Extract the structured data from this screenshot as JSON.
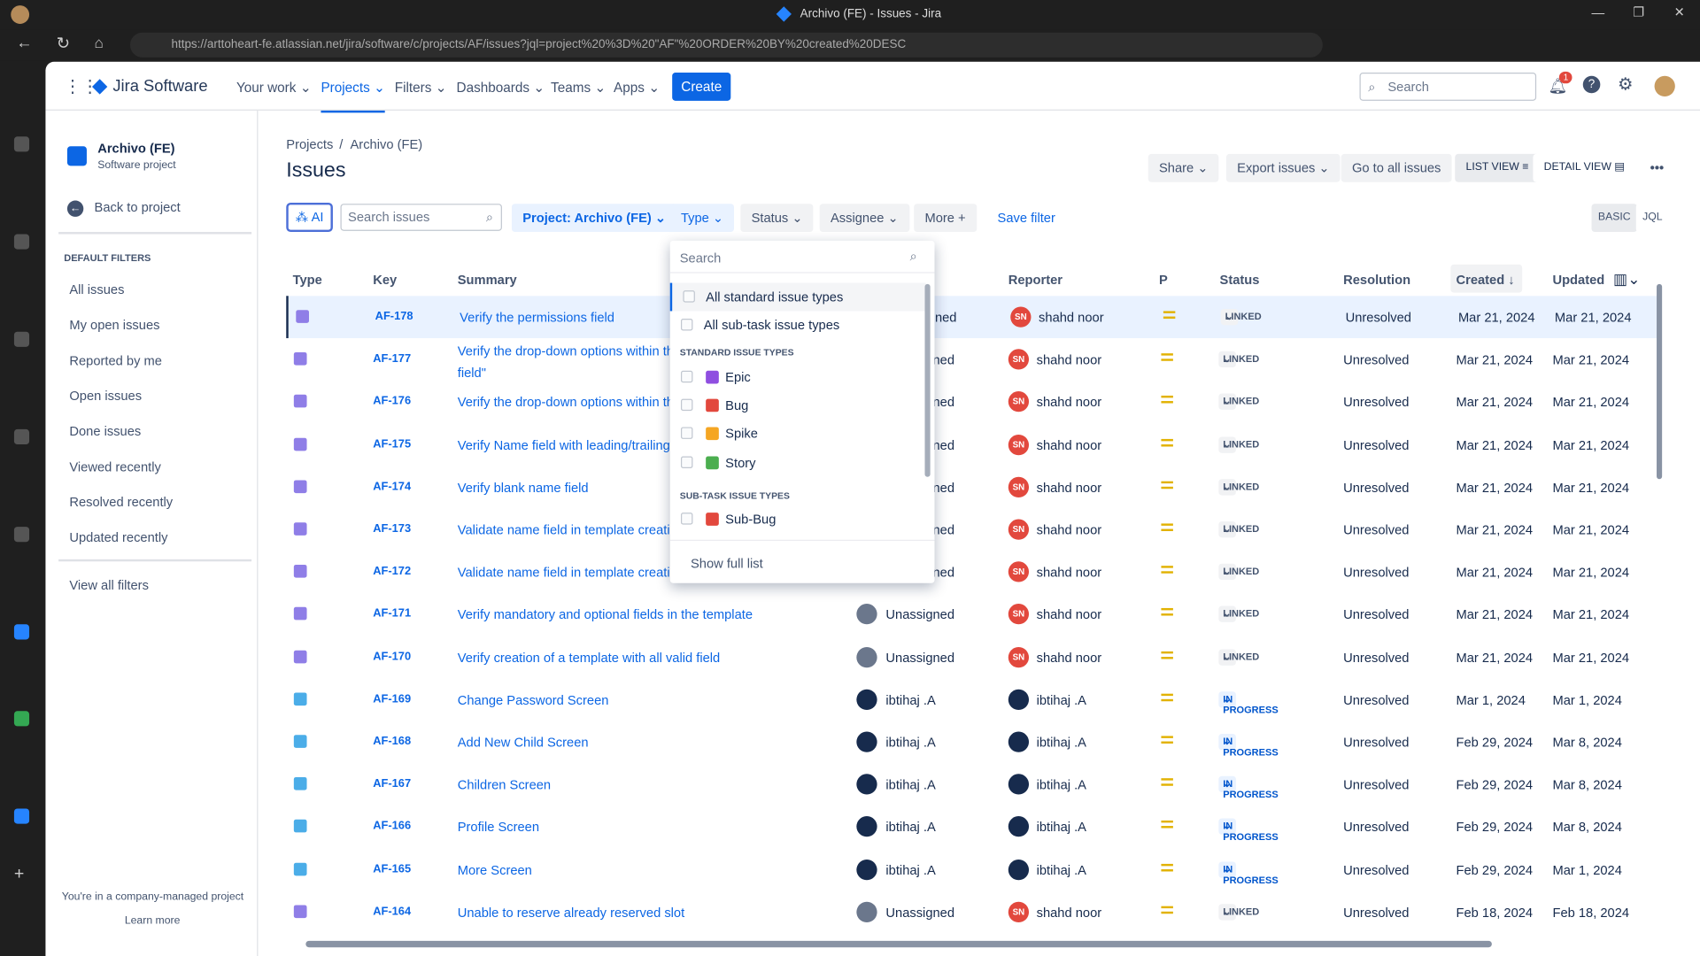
{
  "browser": {
    "title": "Archivo (FE) - Issues - Jira",
    "url": "https://arttoheart-fe.atlassian.net/jira/software/c/projects/AF/issues?jql=project%20%3D%20\"AF\"%20ORDER%20BY%20created%20DESC"
  },
  "nav": {
    "product": "Jira Software",
    "items": [
      "Your work",
      "Projects",
      "Filters",
      "Dashboards",
      "Teams",
      "Apps"
    ],
    "create": "Create",
    "search_placeholder": "Search",
    "notif_count": "1"
  },
  "sidebar": {
    "project_name": "Archivo (FE)",
    "project_type": "Software project",
    "back": "Back to project",
    "section": "DEFAULT FILTERS",
    "items": [
      "All issues",
      "My open issues",
      "Reported by me",
      "Open issues",
      "Done issues",
      "Viewed recently",
      "Resolved recently",
      "Updated recently"
    ],
    "view_all": "View all filters",
    "footer": "You're in a company-managed project",
    "learn_more": "Learn more"
  },
  "main": {
    "breadcrumb": [
      "Projects",
      "Archivo (FE)"
    ],
    "title": "Issues",
    "actions": {
      "share": "Share",
      "export": "Export issues",
      "goto": "Go to all issues",
      "list_view": "LIST VIEW",
      "detail_view": "DETAIL VIEW"
    },
    "filters": {
      "ai": "AI",
      "search_placeholder": "Search issues",
      "project": "Project: Archivo (FE)",
      "type": "Type",
      "status": "Status",
      "assignee": "Assignee",
      "more": "More",
      "save": "Save filter",
      "basic": "BASIC",
      "jql": "JQL"
    },
    "columns": [
      "Type",
      "Key",
      "Summary",
      "Assignee",
      "Reporter",
      "P",
      "Status",
      "Resolution",
      "Created",
      "Updated"
    ],
    "rows": [
      {
        "type": "task",
        "key": "AF-178",
        "summary": "Verify the permissions field",
        "assignee": "Unassigned",
        "reporter": "shahd noor",
        "status": "LINKED",
        "resolution": "Unresolved",
        "created": "Mar 21, 2024",
        "updated": "Mar 21, 2024"
      },
      {
        "type": "task",
        "key": "AF-177",
        "summary": "Verify the drop-down options within th",
        "summary2": "field\"",
        "assignee": "Unassigned",
        "reporter": "shahd noor",
        "status": "LINKED",
        "resolution": "Unresolved",
        "created": "Mar 21, 2024",
        "updated": "Mar 21, 2024"
      },
      {
        "type": "task",
        "key": "AF-176",
        "summary": "Verify the drop-down options within th",
        "assignee": "Unassigned",
        "reporter": "shahd noor",
        "status": "LINKED",
        "resolution": "Unresolved",
        "created": "Mar 21, 2024",
        "updated": "Mar 21, 2024"
      },
      {
        "type": "task",
        "key": "AF-175",
        "summary": "Verify Name field with leading/trailing",
        "assignee": "Unassigned",
        "reporter": "shahd noor",
        "status": "LINKED",
        "resolution": "Unresolved",
        "created": "Mar 21, 2024",
        "updated": "Mar 21, 2024"
      },
      {
        "type": "task",
        "key": "AF-174",
        "summary": "Verify blank name field",
        "assignee": "Unassigned",
        "reporter": "shahd noor",
        "status": "LINKED",
        "resolution": "Unresolved",
        "created": "Mar 21, 2024",
        "updated": "Mar 21, 2024"
      },
      {
        "type": "task",
        "key": "AF-173",
        "summary": "Validate name field in template creatio",
        "assignee": "Unassigned",
        "reporter": "shahd noor",
        "status": "LINKED",
        "resolution": "Unresolved",
        "created": "Mar 21, 2024",
        "updated": "Mar 21, 2024"
      },
      {
        "type": "task",
        "key": "AF-172",
        "summary": "Validate name field in template creatio",
        "assignee": "Unassigned",
        "reporter": "shahd noor",
        "status": "LINKED",
        "resolution": "Unresolved",
        "created": "Mar 21, 2024",
        "updated": "Mar 21, 2024"
      },
      {
        "type": "task",
        "key": "AF-171",
        "summary": "Verify mandatory and optional fields in the template",
        "assignee": "Unassigned",
        "reporter": "shahd noor",
        "status": "LINKED",
        "resolution": "Unresolved",
        "created": "Mar 21, 2024",
        "updated": "Mar 21, 2024"
      },
      {
        "type": "task",
        "key": "AF-170",
        "summary": "Verify creation of a template with all valid field",
        "assignee": "Unassigned",
        "reporter": "shahd noor",
        "status": "LINKED",
        "resolution": "Unresolved",
        "created": "Mar 21, 2024",
        "updated": "Mar 21, 2024"
      },
      {
        "type": "subtask",
        "key": "AF-169",
        "summary": "Change Password Screen",
        "assignee": "ibtihaj .A",
        "reporter": "ibtihaj .A",
        "status": "IN PROGRESS",
        "resolution": "Unresolved",
        "created": "Mar 1, 2024",
        "updated": "Mar 1, 2024"
      },
      {
        "type": "subtask",
        "key": "AF-168",
        "summary": "Add New Child Screen",
        "assignee": "ibtihaj .A",
        "reporter": "ibtihaj .A",
        "status": "IN PROGRESS",
        "resolution": "Unresolved",
        "created": "Feb 29, 2024",
        "updated": "Mar 8, 2024"
      },
      {
        "type": "subtask",
        "key": "AF-167",
        "summary": "Children Screen",
        "assignee": "ibtihaj .A",
        "reporter": "ibtihaj .A",
        "status": "IN PROGRESS",
        "resolution": "Unresolved",
        "created": "Feb 29, 2024",
        "updated": "Mar 8, 2024"
      },
      {
        "type": "subtask",
        "key": "AF-166",
        "summary": "Profile Screen",
        "assignee": "ibtihaj .A",
        "reporter": "ibtihaj .A",
        "status": "IN PROGRESS",
        "resolution": "Unresolved",
        "created": "Feb 29, 2024",
        "updated": "Mar 8, 2024"
      },
      {
        "type": "subtask",
        "key": "AF-165",
        "summary": "More Screen",
        "assignee": "ibtihaj .A",
        "reporter": "ibtihaj .A",
        "status": "IN PROGRESS",
        "resolution": "Unresolved",
        "created": "Feb 29, 2024",
        "updated": "Mar 1, 2024"
      },
      {
        "type": "task",
        "key": "AF-164",
        "summary": "Unable to reserve already reserved slot",
        "assignee": "Unassigned",
        "reporter": "shahd noor",
        "status": "LINKED",
        "resolution": "Unresolved",
        "created": "Feb 18, 2024",
        "updated": "Feb 18, 2024"
      }
    ]
  },
  "type_dropdown": {
    "search_placeholder": "Search",
    "all_standard": "All standard issue types",
    "all_subtask": "All sub-task issue types",
    "standard_header": "STANDARD ISSUE TYPES",
    "standard": [
      {
        "label": "Epic",
        "color": "#8f4ee0"
      },
      {
        "label": "Bug",
        "color": "#e2483d"
      },
      {
        "label": "Spike",
        "color": "#f5a623"
      },
      {
        "label": "Story",
        "color": "#4bae4f"
      }
    ],
    "subtask_header": "SUB-TASK ISSUE TYPES",
    "subtask": [
      {
        "label": "Sub-Bug",
        "color": "#e2483d"
      }
    ],
    "show_full": "Show full list"
  },
  "colors": {
    "accent": "#0c66e4",
    "task": "#8f7ee7",
    "subtask": "#4bade8"
  }
}
